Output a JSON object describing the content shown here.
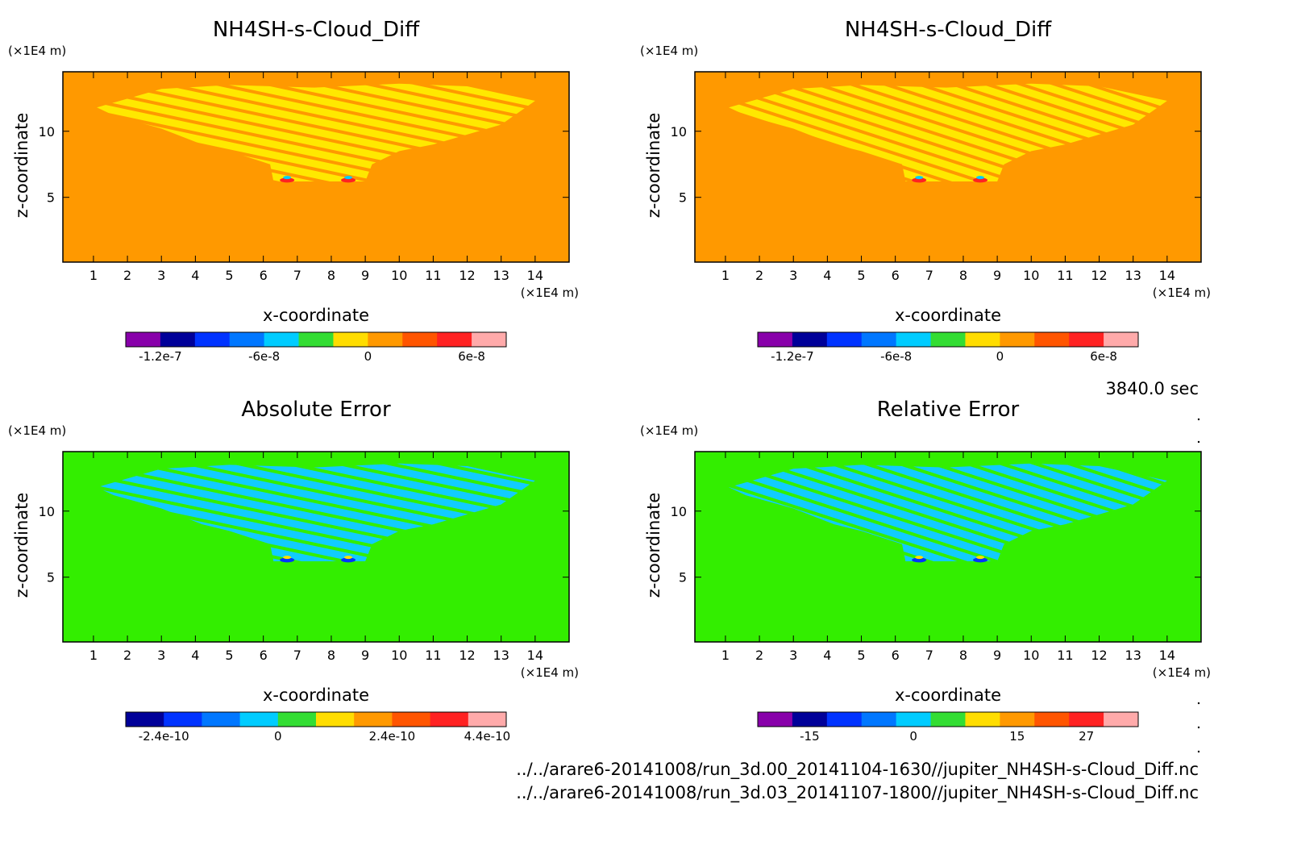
{
  "figure": {
    "time_label": "3840.0 sec",
    "file_lines": [
      "../../arare6-20141008/run_3d.00_20141104-1630//jupiter_NH4SH-s-Cloud_Diff.nc",
      "../../arare6-20141008/run_3d.03_20141107-1800//jupiter_NH4SH-s-Cloud_Diff.nc"
    ]
  },
  "chart_data": [
    {
      "type": "heatmap",
      "title": "NH4SH-s-Cloud_Diff",
      "xlabel": "x-coordinate",
      "ylabel": "z-coordinate",
      "x_unit": "(×1E4 m)",
      "y_unit": "(×1E4 m)",
      "xlim": [
        0.1,
        15.0
      ],
      "ylim": [
        0.1,
        14.5
      ],
      "x_ticks": [
        1,
        2,
        3,
        4,
        5,
        6,
        7,
        8,
        9,
        10,
        11,
        12,
        13,
        14
      ],
      "y_ticks": [
        5,
        10
      ],
      "background": "#ff9900",
      "cloud_fill": "#ffe800",
      "colorbar": {
        "colors": [
          "#8800aa",
          "#000099",
          "#0033ff",
          "#0077ff",
          "#00ccff",
          "#33dd33",
          "#ffdd00",
          "#ff9900",
          "#ff5500",
          "#ff2222",
          "#ffaaaa"
        ],
        "tick_labels": [
          "-1.2e-7",
          "-6e-8",
          "0",
          "6e-8"
        ]
      }
    },
    {
      "type": "heatmap",
      "title": "NH4SH-s-Cloud_Diff",
      "xlabel": "x-coordinate",
      "ylabel": "z-coordinate",
      "x_unit": "(×1E4 m)",
      "y_unit": "(×1E4 m)",
      "xlim": [
        0.1,
        15.0
      ],
      "ylim": [
        0.1,
        14.5
      ],
      "x_ticks": [
        1,
        2,
        3,
        4,
        5,
        6,
        7,
        8,
        9,
        10,
        11,
        12,
        13,
        14
      ],
      "y_ticks": [
        5,
        10
      ],
      "background": "#ff9900",
      "cloud_fill": "#ffe800",
      "colorbar": {
        "colors": [
          "#8800aa",
          "#000099",
          "#0033ff",
          "#0077ff",
          "#00ccff",
          "#33dd33",
          "#ffdd00",
          "#ff9900",
          "#ff5500",
          "#ff2222",
          "#ffaaaa"
        ],
        "tick_labels": [
          "-1.2e-7",
          "-6e-8",
          "0",
          "6e-8"
        ]
      }
    },
    {
      "type": "heatmap",
      "title": "Absolute Error",
      "xlabel": "x-coordinate",
      "ylabel": "z-coordinate",
      "x_unit": "(×1E4 m)",
      "y_unit": "(×1E4 m)",
      "xlim": [
        0.1,
        15.0
      ],
      "ylim": [
        0.1,
        14.5
      ],
      "x_ticks": [
        1,
        2,
        3,
        4,
        5,
        6,
        7,
        8,
        9,
        10,
        11,
        12,
        13,
        14
      ],
      "y_ticks": [
        5,
        10
      ],
      "background": "#33ee00",
      "cloud_fill": "#11ccff",
      "colorbar": {
        "colors": [
          "#000099",
          "#0033ff",
          "#0077ff",
          "#00ccff",
          "#33dd33",
          "#ffdd00",
          "#ff9900",
          "#ff5500",
          "#ff2222",
          "#ffaaaa"
        ],
        "tick_labels": [
          "-2.4e-10",
          "0",
          "2.4e-10",
          "4.4e-10"
        ]
      }
    },
    {
      "type": "heatmap",
      "title": "Relative Error",
      "xlabel": "x-coordinate",
      "ylabel": "z-coordinate",
      "x_unit": "(×1E4 m)",
      "y_unit": "(×1E4 m)",
      "xlim": [
        0.1,
        15.0
      ],
      "ylim": [
        0.1,
        14.5
      ],
      "x_ticks": [
        1,
        2,
        3,
        4,
        5,
        6,
        7,
        8,
        9,
        10,
        11,
        12,
        13,
        14
      ],
      "y_ticks": [
        5,
        10
      ],
      "background": "#33ee00",
      "cloud_fill": "#11ccff",
      "colorbar": {
        "colors": [
          "#8800aa",
          "#000099",
          "#0033ff",
          "#0077ff",
          "#00ccff",
          "#33dd33",
          "#ffdd00",
          "#ff9900",
          "#ff5500",
          "#ff2222",
          "#ffaaaa"
        ],
        "tick_labels": [
          "-15",
          "0",
          "15",
          "27"
        ]
      }
    }
  ]
}
